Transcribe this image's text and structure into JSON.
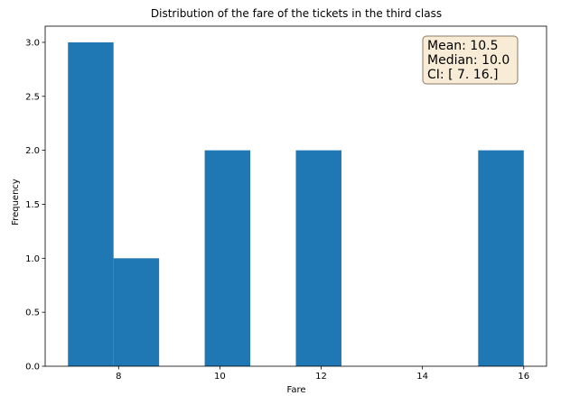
{
  "chart_data": {
    "type": "bar",
    "title": "Distribution of the fare of the tickets in the third class",
    "xlabel": "Fare",
    "ylabel": "Frequency",
    "bins": [
      {
        "x0": 7.0,
        "x1": 7.9,
        "count": 3
      },
      {
        "x0": 7.9,
        "x1": 8.8,
        "count": 1
      },
      {
        "x0": 8.8,
        "x1": 9.7,
        "count": 0
      },
      {
        "x0": 9.7,
        "x1": 10.6,
        "count": 2
      },
      {
        "x0": 10.6,
        "x1": 11.5,
        "count": 0
      },
      {
        "x0": 11.5,
        "x1": 12.4,
        "count": 2
      },
      {
        "x0": 12.4,
        "x1": 13.3,
        "count": 0
      },
      {
        "x0": 13.3,
        "x1": 14.2,
        "count": 0
      },
      {
        "x0": 14.2,
        "x1": 15.1,
        "count": 0
      },
      {
        "x0": 15.1,
        "x1": 16.0,
        "count": 2
      }
    ],
    "xlim": [
      6.55,
      16.45
    ],
    "ylim": [
      0,
      3.15
    ],
    "xticks": [
      8,
      10,
      12,
      14,
      16
    ],
    "yticks": [
      0.0,
      0.5,
      1.0,
      1.5,
      2.0,
      2.5,
      3.0
    ],
    "bar_color": "#1f77b4",
    "grid": false,
    "annotation": {
      "lines": [
        "Mean: 10.5",
        "Median: 10.0",
        "CI: [ 7. 16.]"
      ],
      "placement": "top-right",
      "facecolor": "#f9ecd7",
      "edgecolor": "#8b7a63"
    }
  }
}
